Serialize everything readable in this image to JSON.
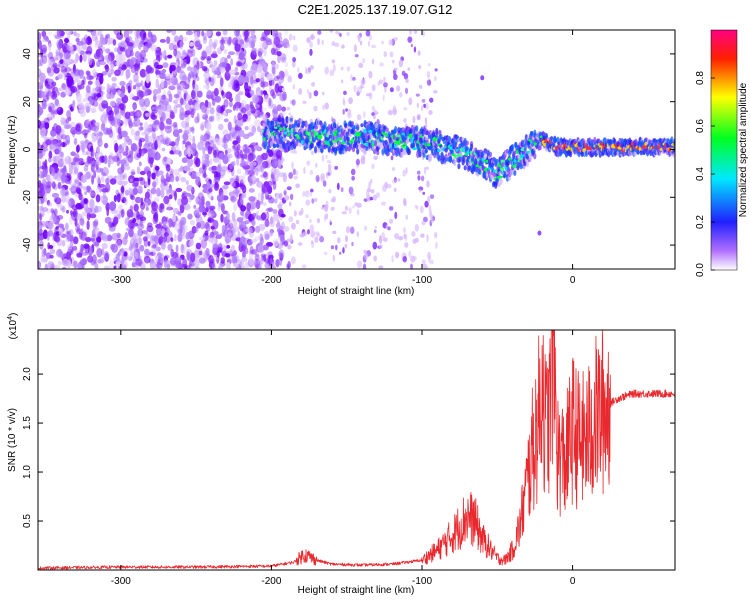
{
  "title": "C2E1.2025.137.19.07.G12",
  "colorbar": {
    "label": "Normalized spectral amplitude",
    "ticks": [
      "0.0",
      "0.2",
      "0.4",
      "0.6",
      "0.8"
    ],
    "tick_values": [
      0.0,
      0.2,
      0.4,
      0.6,
      0.8
    ],
    "range": [
      0,
      1
    ],
    "colormap": [
      "#ffffff",
      "#7a00ff",
      "#0000ff",
      "#00ffff",
      "#00ff00",
      "#ffff00",
      "#ff0000",
      "#ff0080"
    ]
  },
  "chart_data": [
    {
      "type": "heatmap",
      "xlabel": "Height of straight line (km)",
      "ylabel": "Frequency (Hz)",
      "xlim": [
        -355,
        68
      ],
      "ylim": [
        -50,
        50
      ],
      "xticks": [
        -300,
        -200,
        -100,
        0
      ],
      "xtick_labels": [
        "-300",
        "-200",
        "-100",
        "0"
      ],
      "yticks": [
        -40,
        -20,
        0,
        20,
        40
      ],
      "ytick_labels": [
        "-40",
        "-20",
        "0",
        "20",
        "40"
      ],
      "noise_region_km": [
        -355,
        -190
      ],
      "signal_trace": {
        "x": [
          -205,
          -195,
          -180,
          -160,
          -140,
          -120,
          -100,
          -80,
          -60,
          -50,
          -45,
          -40,
          -35,
          -30,
          -25,
          -20,
          -15,
          -10,
          0,
          10,
          20,
          40,
          60,
          68
        ],
        "y": [
          5,
          7,
          6,
          5,
          5,
          4,
          3,
          0,
          -5,
          -10,
          -7,
          -5,
          -3,
          0,
          3,
          4,
          2,
          1,
          1,
          1,
          1,
          1,
          1,
          1
        ]
      }
    },
    {
      "type": "line",
      "xlabel": "Height of straight line (km)",
      "ylabel": "SNR (10 * v/v)",
      "y_multiplier": "(x10",
      "y_multiplier_exp": "4",
      "y_multiplier_close": ")",
      "xlim": [
        -355,
        68
      ],
      "ylim": [
        0,
        2.45
      ],
      "xticks": [
        -300,
        -200,
        -100,
        0
      ],
      "xtick_labels": [
        "-300",
        "-200",
        "-100",
        "0"
      ],
      "yticks": [
        0.5,
        1.0,
        1.5,
        2.0
      ],
      "ytick_labels": [
        "0.5",
        "1.0",
        "1.5",
        "2.0"
      ],
      "series": [
        {
          "color": "#e8282d",
          "x": [
            -355,
            -300,
            -250,
            -200,
            -185,
            -178,
            -170,
            -160,
            -140,
            -120,
            -100,
            -90,
            -80,
            -75,
            -70,
            -65,
            -60,
            -55,
            -50,
            -45,
            -40,
            -35,
            -30,
            -28,
            -25,
            -22,
            -20,
            -18,
            -15,
            -13,
            -10,
            -5,
            0,
            5,
            10,
            15,
            20,
            25,
            30,
            40,
            50,
            60,
            68
          ],
          "y": [
            0.02,
            0.03,
            0.03,
            0.04,
            0.08,
            0.16,
            0.1,
            0.06,
            0.05,
            0.06,
            0.1,
            0.2,
            0.35,
            0.45,
            0.55,
            0.5,
            0.32,
            0.22,
            0.12,
            0.1,
            0.2,
            0.45,
            0.9,
            1.1,
            1.35,
            1.6,
            2.05,
            1.4,
            1.65,
            2.4,
            1.2,
            1.1,
            1.45,
            1.3,
            1.35,
            1.55,
            1.62,
            1.7,
            1.75,
            1.8,
            1.8,
            1.8,
            1.8
          ]
        }
      ]
    }
  ]
}
